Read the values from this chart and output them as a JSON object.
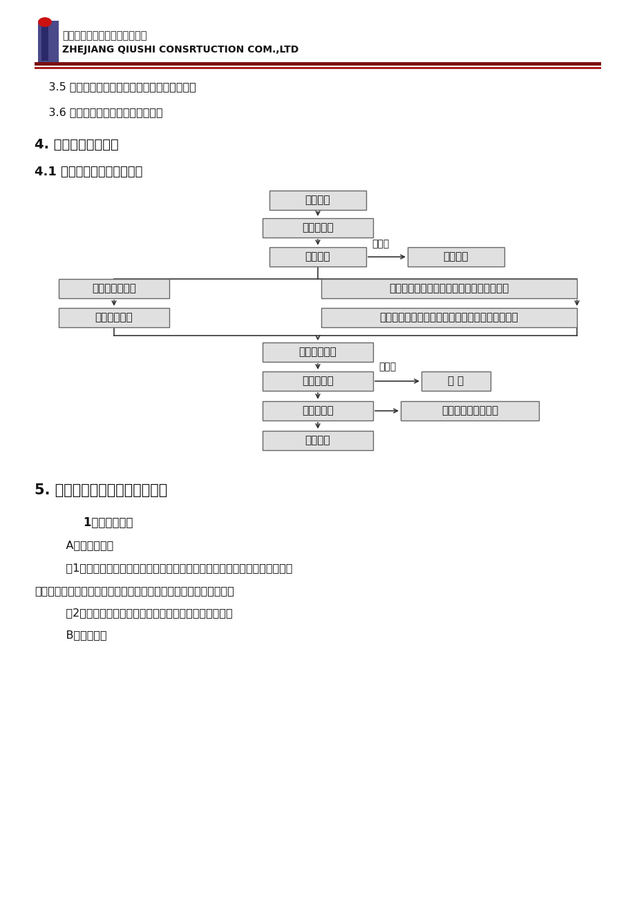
{
  "bg_color": "#ffffff",
  "header_company_cn": "浙江求是工程咨询监理有限公司",
  "header_company_en": "ZHEJIANG QIUSHI CONSRTUCTION COM.,LTD",
  "line1": "    3.5 图纸会审纪要、设计变更、相关标准图集；",
  "line2": "    3.6 国家现行的施工质量验收规范。",
  "section4_title": "4. 监理工作的流程：",
  "section41_title": "4.1 模板分项施工监理流程：",
  "section5_title": "5. 监理工作的控制要点及目标值",
  "section5_sub1": "        1、控制要点：",
  "section5_A": "    A、主控项目：",
  "section5_p1": "    （1）安装现浇砼结构的上层模板及支架时，下层楼板应具有承受上层荷载的",
  "section5_p1b": "承载能力，或加设支架。上、下层支架的立柱要对准，并铺设垫板。",
  "section5_p2": "    （2）在涂刷模板隔离剂时，不得沾污钢筋和砼接槎处。",
  "section5_B": "    B、一般项目"
}
